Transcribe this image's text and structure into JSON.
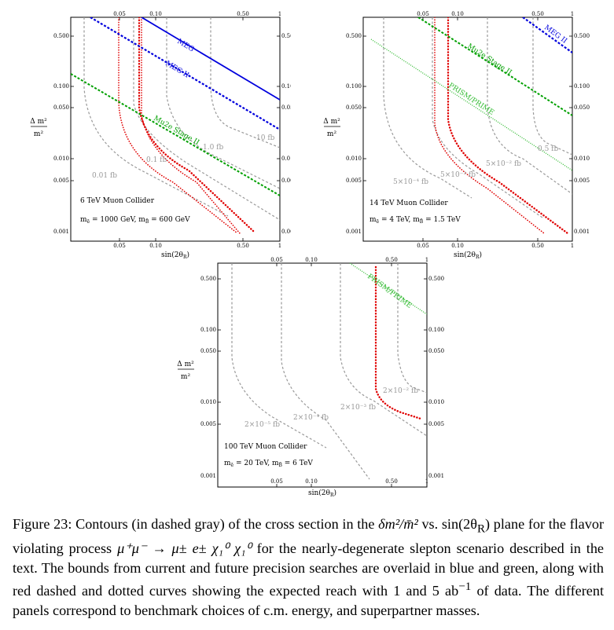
{
  "figure": {
    "number_label": "Figure 23:",
    "caption_parts": {
      "p1": "Contours (in dashed gray) of the cross section in the ",
      "math_dm": "δm²/m̄²",
      "p2": " vs. sin(2θ",
      "p2b": ") plane for the flavor violating process ",
      "process": "μ⁺μ⁻ → μ± e± χ₁⁰ χ₁⁰",
      "p3": " for the nearly-degenerate slepton scenario described in the text. The bounds from current and future precision searches are overlaid in blue and green, along with red dashed and dotted curves showing the expected reach with 1 and 5 ab",
      "p3sup": "−1",
      "p4": " of data. The different panels correspond to benchmark choices of c.m. energy, and superpartner masses."
    }
  },
  "axes": {
    "ylabel_num": "Δ m²",
    "ylabel_den": "m²",
    "xlabel": "sin(2θR)",
    "xlabel_main": "sin(2θ",
    "xlabel_sub": "R",
    "xlabel_close": ")",
    "x_ticks": [
      "0.05",
      "0.10",
      "0.50",
      "1"
    ],
    "y_ticks": [
      "0.500",
      "0.100",
      "0.050",
      "0.010",
      "0.005",
      "0.001"
    ],
    "x_scale": "log",
    "y_scale": "log",
    "xlim": [
      0.02,
      1.0
    ],
    "ylim": [
      0.001,
      0.7
    ]
  },
  "colors": {
    "contour": "#999999",
    "red": "#e00000",
    "blue": "#0000dd",
    "green": "#00a000",
    "green_light": "#33bb33"
  },
  "panels": [
    {
      "id": "6tev",
      "collider": "6 TeV Muon Collider",
      "masses": "m_ẽ = 1000 GeV,  m_B̃ = 600 GeV",
      "mass_e_label": "m",
      "mass_e_value": " = 1000 GeV,  m",
      "mass_b_value": " = 600 GeV",
      "contour_labels": [
        "0.01 fb",
        "0.1 fb",
        "1.0 fb",
        "10 fb"
      ],
      "bound_labels": {
        "meg": "MEG",
        "meg2": "MEG II",
        "mu2e": "Mu2e Stage II"
      }
    },
    {
      "id": "14tev",
      "collider": "14 TeV Muon Collider",
      "mass_e_value": " = 4 TeV,  m",
      "mass_b_value": " = 1.5 TeV",
      "contour_labels": [
        "5×10⁻⁴ fb",
        "5×10⁻³ fb",
        "5×10⁻² fb",
        "0.5 fb"
      ],
      "bound_labels": {
        "meg2": "MEG II",
        "mu2e": "Mu2e Stage II",
        "prism": "PRISM/PRIME"
      }
    },
    {
      "id": "100tev",
      "collider": "100 TeV Muon Collider",
      "mass_e_value": " = 20 TeV,  m",
      "mass_b_value": " = 6 TeV",
      "contour_labels": [
        "2×10⁻⁵ fb",
        "2×10⁻⁴ fb",
        "2×10⁻³ fb",
        "2×10⁻² fb"
      ],
      "bound_labels": {
        "prism": "PRISM/PRIME"
      }
    }
  ]
}
